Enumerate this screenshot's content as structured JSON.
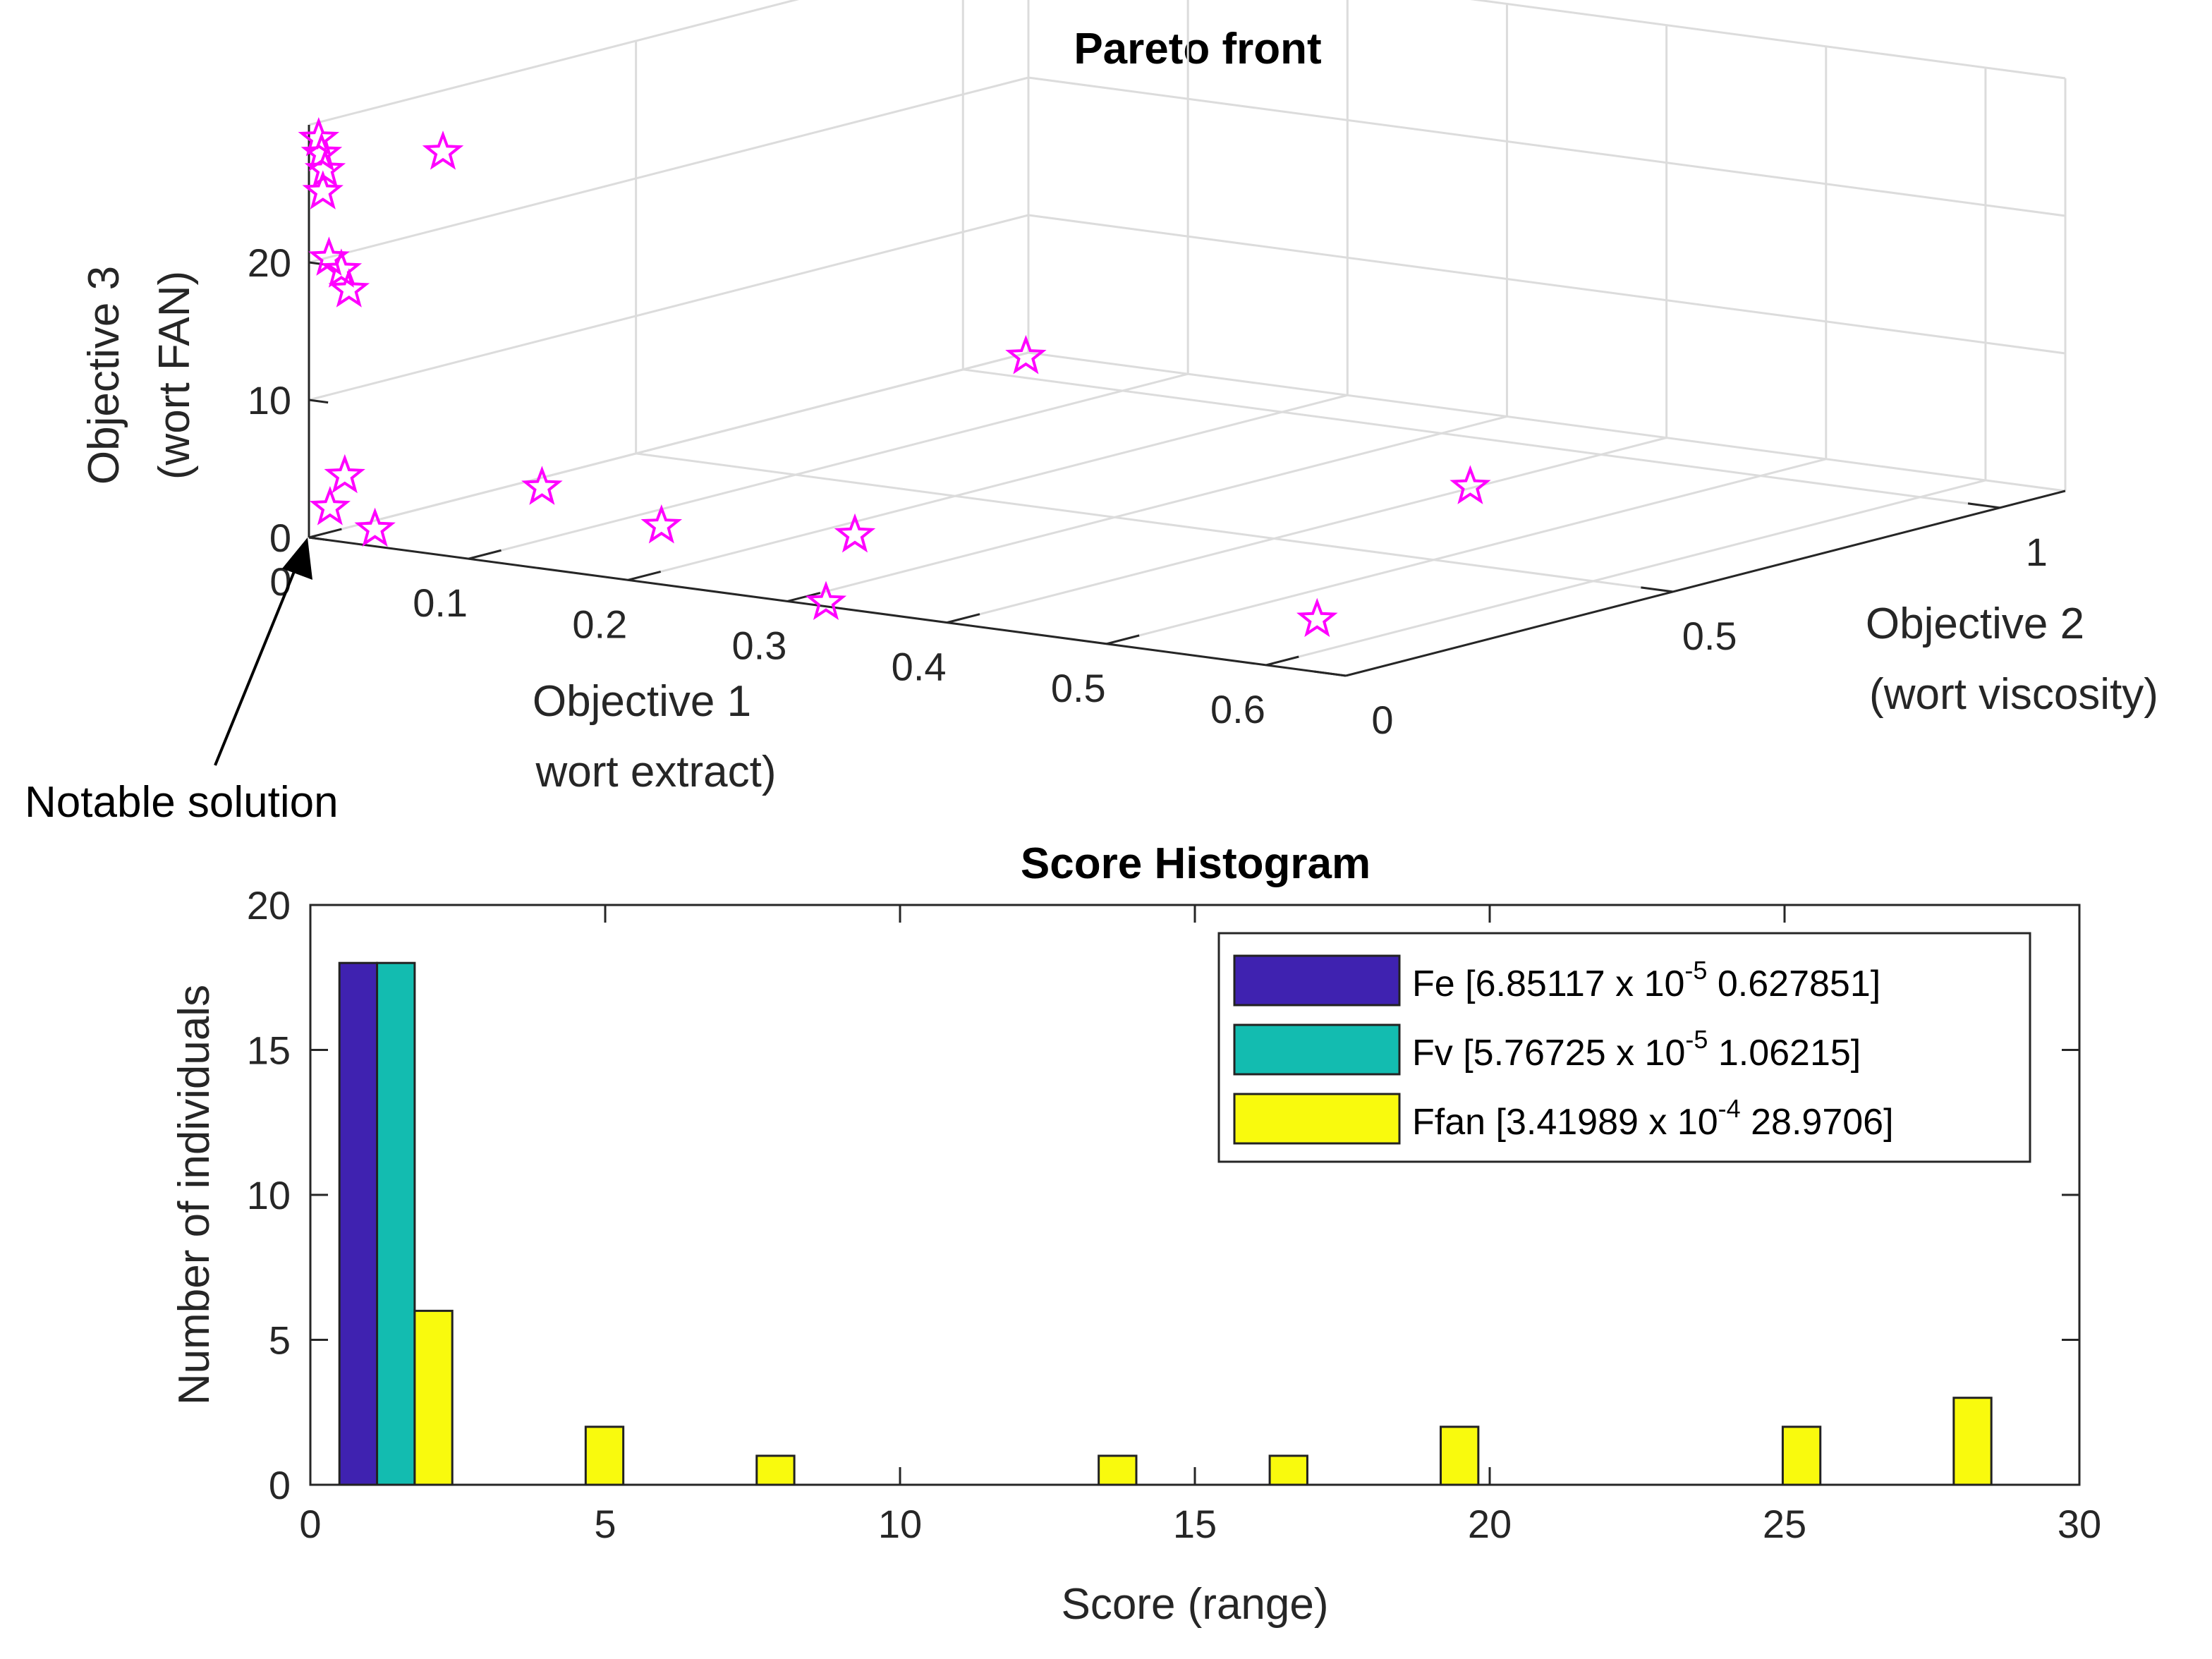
{
  "chart_data": [
    {
      "type": "scatter3d",
      "title": "Pareto front",
      "xlabel": [
        "Objective 1",
        "wort extract)"
      ],
      "ylabel": [
        "Objective 2",
        "(wort viscosity)"
      ],
      "zlabel": [
        "Objective 3",
        "(wort FAN)"
      ],
      "xlim": [
        0,
        0.65
      ],
      "ylim": [
        0,
        1.1
      ],
      "zlim": [
        0,
        30
      ],
      "xticks": [
        "0",
        "0.1",
        "0.2",
        "0.3",
        "0.4",
        "0.5",
        "0.6"
      ],
      "yticks": [
        "0",
        "0.5",
        "1"
      ],
      "zticks": [
        "0",
        "10",
        "20"
      ],
      "marker": "pentagram",
      "color": "#ff00ff",
      "points": [
        {
          "x": 0.002,
          "y": 0.01,
          "z": 28.9
        },
        {
          "x": 0.003,
          "y": 0.012,
          "z": 27.8
        },
        {
          "x": 0.004,
          "y": 0.015,
          "z": 26.6
        },
        {
          "x": 0.003,
          "y": 0.014,
          "z": 25.0
        },
        {
          "x": 0.006,
          "y": 0.016,
          "z": 20.2
        },
        {
          "x": 0.008,
          "y": 0.03,
          "z": 19.2
        },
        {
          "x": 0.012,
          "y": 0.032,
          "z": 17.8
        },
        {
          "x": 0.002,
          "y": 0.2,
          "z": 25.6
        },
        {
          "x": 0.005,
          "y": 0.02,
          "z": 2.0
        },
        {
          "x": 0.004,
          "y": 0.045,
          "z": 4.0
        },
        {
          "x": 0.025,
          "y": 0.04,
          "z": 0.5
        },
        {
          "x": 0.06,
          "y": 0.21,
          "z": 2.0
        },
        {
          "x": 0.18,
          "y": 0.1,
          "z": 2.4
        },
        {
          "x": 0.25,
          "y": 0.225,
          "z": 1.3
        },
        {
          "x": 0.32,
          "y": 0.01,
          "z": 0.1
        },
        {
          "x": 0.4,
          "y": 0.8,
          "z": 0.1
        },
        {
          "x": 0.55,
          "y": 0.2,
          "z": 0.1
        },
        {
          "x": 0.023,
          "y": 1.04,
          "z": 0.8
        }
      ],
      "annotation": {
        "text": "Notable solution",
        "target": {
          "x": 0,
          "y": 0,
          "z": 0
        }
      }
    },
    {
      "type": "bar",
      "title": "Score Histogram",
      "xlabel": "Score (range)",
      "ylabel": "Number of individuals",
      "xlim": [
        0,
        30
      ],
      "ylim": [
        0,
        20
      ],
      "xticks": [
        0,
        5,
        10,
        15,
        20,
        25,
        30
      ],
      "yticks": [
        0,
        5,
        10,
        15,
        20
      ],
      "bins": [
        1.45,
        4.35,
        7.25,
        10.15,
        13.05,
        15.95,
        18.85,
        21.75,
        24.65,
        27.55
      ],
      "series": [
        {
          "name": "Fe",
          "range": [
            "6.85117 x 10",
            "-5",
            "  0.627851]"
          ],
          "prefix": "Fe [",
          "color": "#3f22b0",
          "values": [
            18,
            0,
            0,
            0,
            0,
            0,
            0,
            0,
            0,
            0
          ]
        },
        {
          "name": "Fv",
          "range": [
            "5.76725 x 10",
            "-5",
            "  1.06215]"
          ],
          "prefix": "Fv [",
          "color": "#13bcb0",
          "values": [
            18,
            0,
            0,
            0,
            0,
            0,
            0,
            0,
            0,
            0
          ]
        },
        {
          "name": "Ffan",
          "range": [
            "3.41989  x 10",
            "-4",
            "  28.9706]"
          ],
          "prefix": "Ffan [",
          "color": "#f9fa0d",
          "values": [
            6,
            2,
            1,
            0,
            1,
            1,
            2,
            0,
            2,
            3
          ]
        }
      ],
      "legend_position": "top-right"
    }
  ]
}
